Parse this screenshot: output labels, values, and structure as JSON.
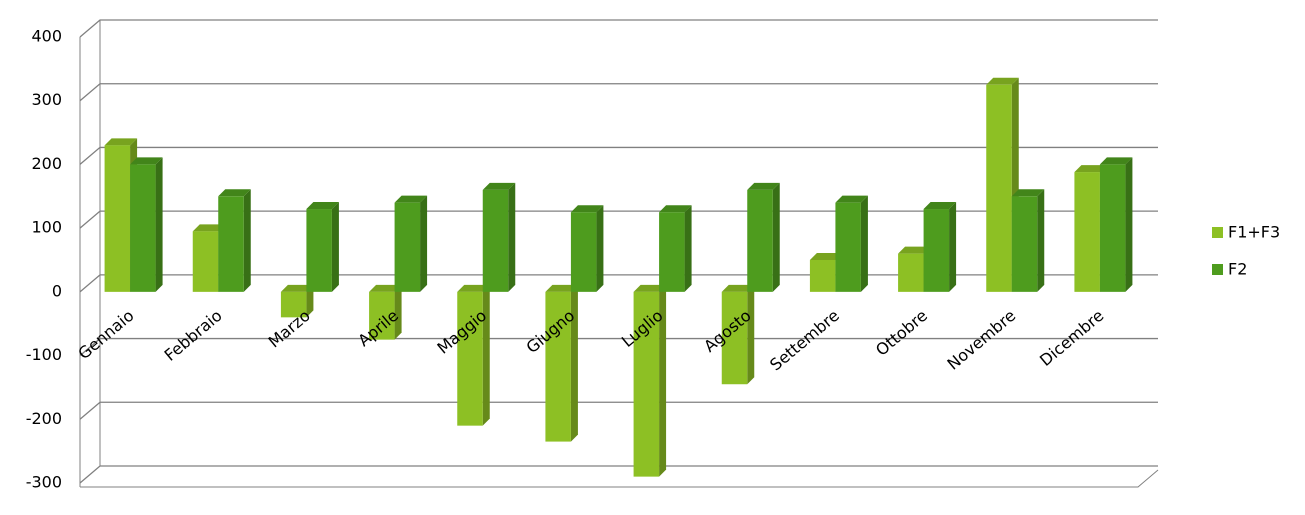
{
  "chart_data": {
    "type": "bar3d",
    "categories": [
      "Gennaio",
      "Febbraio",
      "Marzo",
      "Aprile",
      "Maggio",
      "Giugno",
      "Luglio",
      "Agosto",
      "Settembre",
      "Ottobre",
      "Novembre",
      "Dicembre"
    ],
    "series": [
      {
        "name": "F1+F3",
        "color": "#8dc024",
        "values": [
          230,
          95,
          -40,
          -75,
          -210,
          -235,
          -290,
          -145,
          50,
          60,
          325,
          188
        ]
      },
      {
        "name": "F2",
        "color": "#4e9c1e",
        "values": [
          200,
          150,
          130,
          140,
          160,
          125,
          125,
          160,
          140,
          130,
          150,
          200
        ]
      }
    ],
    "ylim": [
      -300,
      400
    ],
    "yticks": [
      -300,
      -200,
      -100,
      0,
      100,
      200,
      300,
      400
    ],
    "grid": true,
    "legend": "right"
  }
}
